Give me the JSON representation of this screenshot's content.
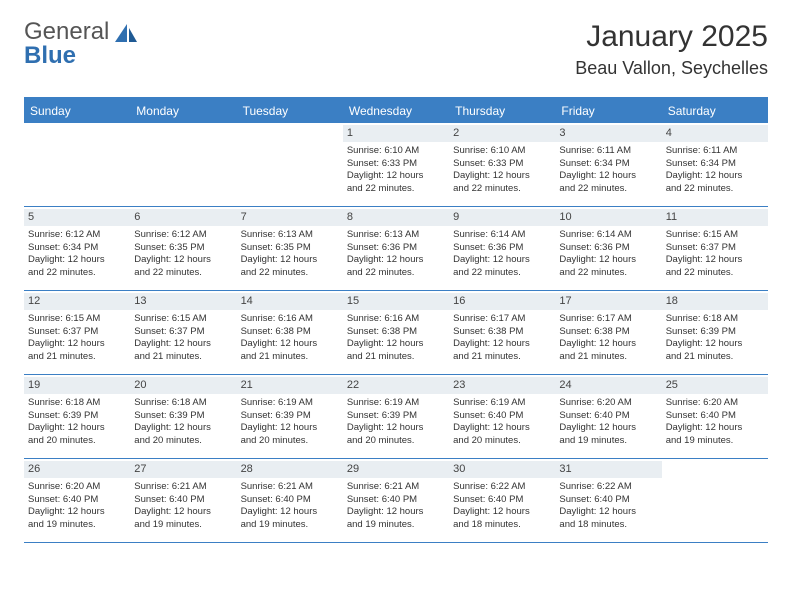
{
  "logo": {
    "text1": "General",
    "text2": "Blue"
  },
  "title": "January 2025",
  "location": "Beau Vallon, Seychelles",
  "colors": {
    "header_bg": "#3b7fc4",
    "header_text": "#ffffff",
    "daynum_bg": "#e9eef2",
    "border": "#3b7fc4",
    "logo_gray": "#555555",
    "logo_blue": "#2f6fb0"
  },
  "days_of_week": [
    "Sunday",
    "Monday",
    "Tuesday",
    "Wednesday",
    "Thursday",
    "Friday",
    "Saturday"
  ],
  "weeks": [
    [
      null,
      null,
      null,
      {
        "n": "1",
        "sr": "Sunrise: 6:10 AM",
        "ss": "Sunset: 6:33 PM",
        "d1": "Daylight: 12 hours",
        "d2": "and 22 minutes."
      },
      {
        "n": "2",
        "sr": "Sunrise: 6:10 AM",
        "ss": "Sunset: 6:33 PM",
        "d1": "Daylight: 12 hours",
        "d2": "and 22 minutes."
      },
      {
        "n": "3",
        "sr": "Sunrise: 6:11 AM",
        "ss": "Sunset: 6:34 PM",
        "d1": "Daylight: 12 hours",
        "d2": "and 22 minutes."
      },
      {
        "n": "4",
        "sr": "Sunrise: 6:11 AM",
        "ss": "Sunset: 6:34 PM",
        "d1": "Daylight: 12 hours",
        "d2": "and 22 minutes."
      }
    ],
    [
      {
        "n": "5",
        "sr": "Sunrise: 6:12 AM",
        "ss": "Sunset: 6:34 PM",
        "d1": "Daylight: 12 hours",
        "d2": "and 22 minutes."
      },
      {
        "n": "6",
        "sr": "Sunrise: 6:12 AM",
        "ss": "Sunset: 6:35 PM",
        "d1": "Daylight: 12 hours",
        "d2": "and 22 minutes."
      },
      {
        "n": "7",
        "sr": "Sunrise: 6:13 AM",
        "ss": "Sunset: 6:35 PM",
        "d1": "Daylight: 12 hours",
        "d2": "and 22 minutes."
      },
      {
        "n": "8",
        "sr": "Sunrise: 6:13 AM",
        "ss": "Sunset: 6:36 PM",
        "d1": "Daylight: 12 hours",
        "d2": "and 22 minutes."
      },
      {
        "n": "9",
        "sr": "Sunrise: 6:14 AM",
        "ss": "Sunset: 6:36 PM",
        "d1": "Daylight: 12 hours",
        "d2": "and 22 minutes."
      },
      {
        "n": "10",
        "sr": "Sunrise: 6:14 AM",
        "ss": "Sunset: 6:36 PM",
        "d1": "Daylight: 12 hours",
        "d2": "and 22 minutes."
      },
      {
        "n": "11",
        "sr": "Sunrise: 6:15 AM",
        "ss": "Sunset: 6:37 PM",
        "d1": "Daylight: 12 hours",
        "d2": "and 22 minutes."
      }
    ],
    [
      {
        "n": "12",
        "sr": "Sunrise: 6:15 AM",
        "ss": "Sunset: 6:37 PM",
        "d1": "Daylight: 12 hours",
        "d2": "and 21 minutes."
      },
      {
        "n": "13",
        "sr": "Sunrise: 6:15 AM",
        "ss": "Sunset: 6:37 PM",
        "d1": "Daylight: 12 hours",
        "d2": "and 21 minutes."
      },
      {
        "n": "14",
        "sr": "Sunrise: 6:16 AM",
        "ss": "Sunset: 6:38 PM",
        "d1": "Daylight: 12 hours",
        "d2": "and 21 minutes."
      },
      {
        "n": "15",
        "sr": "Sunrise: 6:16 AM",
        "ss": "Sunset: 6:38 PM",
        "d1": "Daylight: 12 hours",
        "d2": "and 21 minutes."
      },
      {
        "n": "16",
        "sr": "Sunrise: 6:17 AM",
        "ss": "Sunset: 6:38 PM",
        "d1": "Daylight: 12 hours",
        "d2": "and 21 minutes."
      },
      {
        "n": "17",
        "sr": "Sunrise: 6:17 AM",
        "ss": "Sunset: 6:38 PM",
        "d1": "Daylight: 12 hours",
        "d2": "and 21 minutes."
      },
      {
        "n": "18",
        "sr": "Sunrise: 6:18 AM",
        "ss": "Sunset: 6:39 PM",
        "d1": "Daylight: 12 hours",
        "d2": "and 21 minutes."
      }
    ],
    [
      {
        "n": "19",
        "sr": "Sunrise: 6:18 AM",
        "ss": "Sunset: 6:39 PM",
        "d1": "Daylight: 12 hours",
        "d2": "and 20 minutes."
      },
      {
        "n": "20",
        "sr": "Sunrise: 6:18 AM",
        "ss": "Sunset: 6:39 PM",
        "d1": "Daylight: 12 hours",
        "d2": "and 20 minutes."
      },
      {
        "n": "21",
        "sr": "Sunrise: 6:19 AM",
        "ss": "Sunset: 6:39 PM",
        "d1": "Daylight: 12 hours",
        "d2": "and 20 minutes."
      },
      {
        "n": "22",
        "sr": "Sunrise: 6:19 AM",
        "ss": "Sunset: 6:39 PM",
        "d1": "Daylight: 12 hours",
        "d2": "and 20 minutes."
      },
      {
        "n": "23",
        "sr": "Sunrise: 6:19 AM",
        "ss": "Sunset: 6:40 PM",
        "d1": "Daylight: 12 hours",
        "d2": "and 20 minutes."
      },
      {
        "n": "24",
        "sr": "Sunrise: 6:20 AM",
        "ss": "Sunset: 6:40 PM",
        "d1": "Daylight: 12 hours",
        "d2": "and 19 minutes."
      },
      {
        "n": "25",
        "sr": "Sunrise: 6:20 AM",
        "ss": "Sunset: 6:40 PM",
        "d1": "Daylight: 12 hours",
        "d2": "and 19 minutes."
      }
    ],
    [
      {
        "n": "26",
        "sr": "Sunrise: 6:20 AM",
        "ss": "Sunset: 6:40 PM",
        "d1": "Daylight: 12 hours",
        "d2": "and 19 minutes."
      },
      {
        "n": "27",
        "sr": "Sunrise: 6:21 AM",
        "ss": "Sunset: 6:40 PM",
        "d1": "Daylight: 12 hours",
        "d2": "and 19 minutes."
      },
      {
        "n": "28",
        "sr": "Sunrise: 6:21 AM",
        "ss": "Sunset: 6:40 PM",
        "d1": "Daylight: 12 hours",
        "d2": "and 19 minutes."
      },
      {
        "n": "29",
        "sr": "Sunrise: 6:21 AM",
        "ss": "Sunset: 6:40 PM",
        "d1": "Daylight: 12 hours",
        "d2": "and 19 minutes."
      },
      {
        "n": "30",
        "sr": "Sunrise: 6:22 AM",
        "ss": "Sunset: 6:40 PM",
        "d1": "Daylight: 12 hours",
        "d2": "and 18 minutes."
      },
      {
        "n": "31",
        "sr": "Sunrise: 6:22 AM",
        "ss": "Sunset: 6:40 PM",
        "d1": "Daylight: 12 hours",
        "d2": "and 18 minutes."
      },
      null
    ]
  ]
}
